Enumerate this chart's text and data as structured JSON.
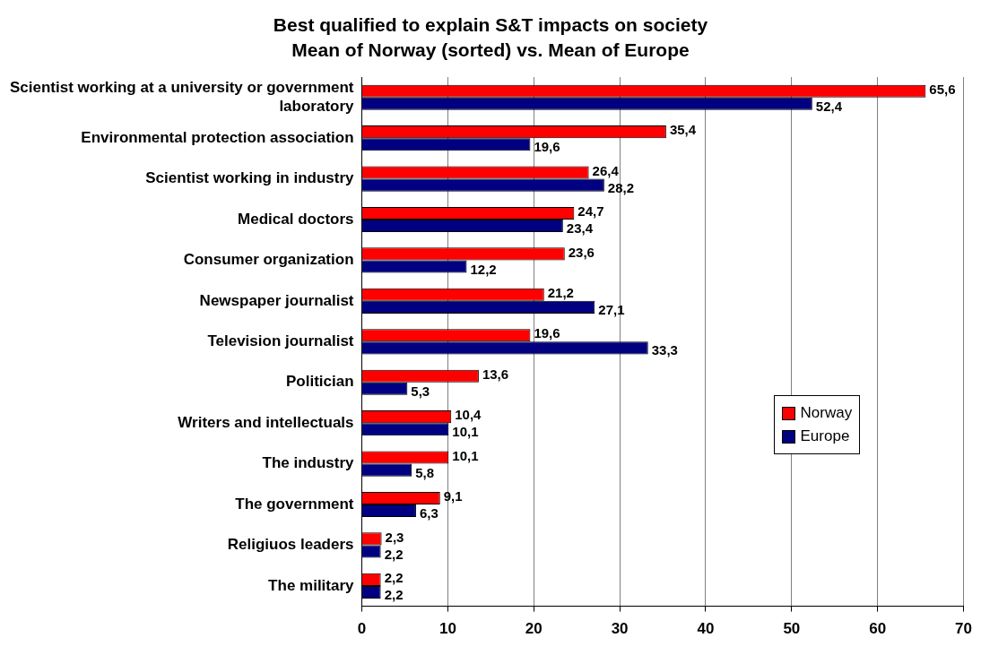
{
  "chart_data": {
    "type": "bar",
    "orientation": "horizontal",
    "title": "Best qualified to explain S&T impacts on society",
    "subtitle": "Mean of Norway (sorted) vs. Mean of Europe",
    "categories": [
      "Scientist working at a university or government laboratory",
      "Environmental protection association",
      "Scientist working in industry",
      "Medical doctors",
      "Consumer organization",
      "Newspaper journalist",
      "Television journalist",
      "Politician",
      "Writers and intellectuals",
      "The industry",
      "The government",
      "Religiuos leaders",
      "The military"
    ],
    "series": [
      {
        "name": "Norway",
        "color": "#ff0000",
        "values": [
          65.6,
          35.4,
          26.4,
          24.7,
          23.6,
          21.2,
          19.6,
          13.6,
          10.4,
          10.1,
          9.1,
          2.3,
          2.2
        ],
        "value_labels": [
          "65,6",
          "35,4",
          "26,4",
          "24,7",
          "23,6",
          "21,2",
          "19,6",
          "13,6",
          "10,4",
          "10,1",
          "9,1",
          "2,3",
          "2,2"
        ]
      },
      {
        "name": "Europe",
        "color": "#000080",
        "values": [
          52.4,
          19.6,
          28.2,
          23.4,
          12.2,
          27.1,
          33.3,
          5.3,
          10.1,
          5.8,
          6.3,
          2.2,
          2.2
        ],
        "value_labels": [
          "52,4",
          "19,6",
          "28,2",
          "23,4",
          "12,2",
          "27,1",
          "33,3",
          "5,3",
          "10,1",
          "5,8",
          "6,3",
          "2,2",
          "2,2"
        ]
      }
    ],
    "xlim": [
      0,
      70
    ],
    "xticks": [
      0,
      10,
      20,
      30,
      40,
      50,
      60,
      70
    ],
    "grid": "x",
    "legend": "right"
  }
}
